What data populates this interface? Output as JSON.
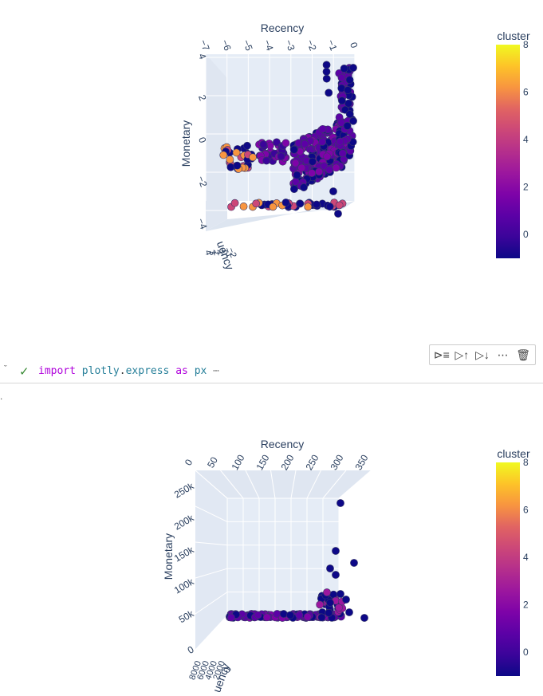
{
  "plots": [
    {
      "axes": {
        "x_title": "Recency",
        "x_ticks": [
          "−7",
          "−6",
          "−5",
          "−4",
          "−3",
          "−2",
          "−1",
          "0"
        ],
        "y_title": "Monetary",
        "y_ticks": [
          "4",
          "2",
          "0",
          "−2",
          "−4"
        ],
        "z_title": "uency",
        "z_ticks": [
          "4",
          "3",
          "2",
          "1",
          "0",
          "−1",
          "−2"
        ]
      },
      "colorbar": {
        "title": "cluster",
        "ticks": [
          "8",
          "6",
          "4",
          "2",
          "0"
        ],
        "range": [
          -1,
          8
        ]
      }
    },
    {
      "axes": {
        "x_title": "Recency",
        "x_ticks": [
          "0",
          "50",
          "100",
          "150",
          "200",
          "250",
          "300",
          "350"
        ],
        "y_title": "Monetary",
        "y_ticks": [
          "250k",
          "200k",
          "150k",
          "100k",
          "50k",
          "0"
        ],
        "z_title": "uency",
        "z_ticks": [
          "8000",
          "6000",
          "4000",
          "2000",
          "0"
        ]
      },
      "colorbar": {
        "title": "cluster",
        "ticks": [
          "8",
          "6",
          "4",
          "2",
          "0"
        ],
        "range": [
          -1,
          8
        ]
      }
    }
  ],
  "cell": {
    "code_tokens": [
      {
        "text": "import",
        "cls": "kw"
      },
      {
        "text": " ",
        "cls": "plain"
      },
      {
        "text": "plotly",
        "cls": "mod"
      },
      {
        "text": ".",
        "cls": "plain"
      },
      {
        "text": "express",
        "cls": "mod"
      },
      {
        "text": " ",
        "cls": "plain"
      },
      {
        "text": "as",
        "cls": "kw"
      },
      {
        "text": " ",
        "cls": "plain"
      },
      {
        "text": "px",
        "cls": "mod"
      },
      {
        "text": " ⋯",
        "cls": "ell"
      }
    ],
    "toolbar": [
      {
        "name": "execute-above-button",
        "icon": "⊳≡"
      },
      {
        "name": "run-above-button",
        "icon": "▷↑"
      },
      {
        "name": "run-below-button",
        "icon": "▷↓"
      },
      {
        "name": "more-actions-button",
        "icon": "⋯"
      },
      {
        "name": "delete-cell-button",
        "icon": "🗑"
      }
    ],
    "marker": "."
  },
  "colors": {
    "grid_bg": "#e5ecf6",
    "grid_line": "#ffffff",
    "cluster_0": "#0d0887",
    "cluster_2": "#7e03a8",
    "cluster_4": "#cc4778",
    "cluster_6": "#f89540",
    "cluster_8": "#f0f921"
  }
}
